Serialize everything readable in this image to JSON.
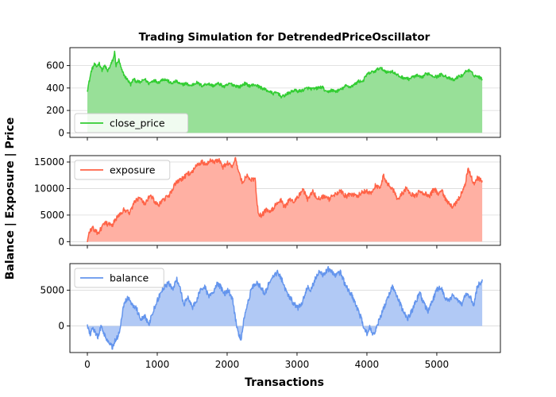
{
  "figure": {
    "title": "Trading Simulation for DetrendedPriceOscillator",
    "xlabel": "Transactions",
    "ylabel": "Balance | Exposure | Price"
  },
  "chart_data": [
    {
      "type": "area",
      "name": "close_price",
      "color": "#32CD32",
      "fill": "#98E098",
      "xlim": [
        -250,
        5910
      ],
      "ylim": [
        -40,
        760
      ],
      "x_ticks": [
        0,
        1000,
        2000,
        3000,
        4000,
        5000
      ],
      "y_ticks": [
        0,
        200,
        400,
        600
      ],
      "grid": true,
      "legend": "lower-left",
      "legend_label": "close_price",
      "anchors": [
        [
          0,
          380
        ],
        [
          30,
          470
        ],
        [
          60,
          560
        ],
        [
          100,
          610
        ],
        [
          130,
          590
        ],
        [
          170,
          620
        ],
        [
          210,
          560
        ],
        [
          250,
          600
        ],
        [
          290,
          550
        ],
        [
          330,
          600
        ],
        [
          370,
          660
        ],
        [
          390,
          720
        ],
        [
          410,
          600
        ],
        [
          450,
          650
        ],
        [
          490,
          560
        ],
        [
          540,
          500
        ],
        [
          580,
          470
        ],
        [
          620,
          430
        ],
        [
          660,
          480
        ],
        [
          700,
          460
        ],
        [
          760,
          450
        ],
        [
          820,
          480
        ],
        [
          880,
          440
        ],
        [
          950,
          470
        ],
        [
          1020,
          450
        ],
        [
          1080,
          480
        ],
        [
          1140,
          470
        ],
        [
          1200,
          440
        ],
        [
          1270,
          460
        ],
        [
          1340,
          430
        ],
        [
          1410,
          440
        ],
        [
          1480,
          420
        ],
        [
          1560,
          450
        ],
        [
          1640,
          420
        ],
        [
          1720,
          440
        ],
        [
          1800,
          420
        ],
        [
          1880,
          440
        ],
        [
          1960,
          410
        ],
        [
          2040,
          440
        ],
        [
          2120,
          420
        ],
        [
          2180,
          410
        ],
        [
          2250,
          440
        ],
        [
          2320,
          420
        ],
        [
          2400,
          430
        ],
        [
          2460,
          410
        ],
        [
          2530,
          390
        ],
        [
          2600,
          370
        ],
        [
          2660,
          350
        ],
        [
          2720,
          360
        ],
        [
          2780,
          320
        ],
        [
          2840,
          340
        ],
        [
          2900,
          360
        ],
        [
          2960,
          380
        ],
        [
          3020,
          370
        ],
        [
          3080,
          380
        ],
        [
          3150,
          400
        ],
        [
          3220,
          390
        ],
        [
          3300,
          400
        ],
        [
          3360,
          410
        ],
        [
          3420,
          360
        ],
        [
          3490,
          380
        ],
        [
          3560,
          370
        ],
        [
          3640,
          390
        ],
        [
          3700,
          420
        ],
        [
          3760,
          410
        ],
        [
          3820,
          430
        ],
        [
          3880,
          460
        ],
        [
          3940,
          460
        ],
        [
          4000,
          520
        ],
        [
          4060,
          540
        ],
        [
          4120,
          550
        ],
        [
          4180,
          580
        ],
        [
          4240,
          560
        ],
        [
          4300,
          540
        ],
        [
          4360,
          550
        ],
        [
          4420,
          520
        ],
        [
          4480,
          500
        ],
        [
          4540,
          490
        ],
        [
          4600,
          480
        ],
        [
          4660,
          500
        ],
        [
          4720,
          510
        ],
        [
          4780,
          490
        ],
        [
          4830,
          520
        ],
        [
          4880,
          530
        ],
        [
          4940,
          510
        ],
        [
          5000,
          500
        ],
        [
          5060,
          520
        ],
        [
          5120,
          510
        ],
        [
          5160,
          490
        ],
        [
          5200,
          480
        ],
        [
          5250,
          470
        ],
        [
          5300,
          500
        ],
        [
          5360,
          510
        ],
        [
          5420,
          550
        ],
        [
          5450,
          560
        ],
        [
          5490,
          540
        ],
        [
          5540,
          510
        ],
        [
          5600,
          500
        ],
        [
          5650,
          480
        ]
      ],
      "noise": 14
    },
    {
      "type": "area",
      "name": "exposure",
      "color": "#FF6347",
      "fill": "#FFB0A3",
      "xlim": [
        -250,
        5910
      ],
      "ylim": [
        -700,
        16200
      ],
      "x_ticks": [
        0,
        1000,
        2000,
        3000,
        4000,
        5000
      ],
      "y_ticks": [
        0,
        5000,
        10000,
        15000
      ],
      "grid": true,
      "legend": "upper-left",
      "legend_label": "exposure",
      "anchors": [
        [
          0,
          0
        ],
        [
          30,
          2000
        ],
        [
          80,
          2500
        ],
        [
          150,
          1500
        ],
        [
          250,
          3500
        ],
        [
          350,
          3000
        ],
        [
          450,
          5000
        ],
        [
          520,
          6000
        ],
        [
          600,
          5500
        ],
        [
          680,
          7500
        ],
        [
          760,
          8500
        ],
        [
          820,
          7000
        ],
        [
          900,
          9000
        ],
        [
          960,
          7500
        ],
        [
          1030,
          7000
        ],
        [
          1100,
          8000
        ],
        [
          1160,
          8500
        ],
        [
          1220,
          10000
        ],
        [
          1270,
          11000
        ],
        [
          1320,
          11500
        ],
        [
          1370,
          12000
        ],
        [
          1420,
          12500
        ],
        [
          1470,
          13000
        ],
        [
          1520,
          13500
        ],
        [
          1580,
          14500
        ],
        [
          1640,
          15000
        ],
        [
          1700,
          14500
        ],
        [
          1760,
          15500
        ],
        [
          1820,
          15000
        ],
        [
          1880,
          15500
        ],
        [
          1940,
          14000
        ],
        [
          2000,
          15000
        ],
        [
          2060,
          14000
        ],
        [
          2120,
          15500
        ],
        [
          2170,
          13000
        ],
        [
          2220,
          11000
        ],
        [
          2280,
          12500
        ],
        [
          2340,
          11500
        ],
        [
          2400,
          12000
        ],
        [
          2430,
          7000
        ],
        [
          2450,
          5000
        ],
        [
          2500,
          5000
        ],
        [
          2560,
          6000
        ],
        [
          2620,
          5500
        ],
        [
          2700,
          7000
        ],
        [
          2760,
          8000
        ],
        [
          2820,
          6500
        ],
        [
          2900,
          8000
        ],
        [
          2960,
          7500
        ],
        [
          3020,
          8500
        ],
        [
          3080,
          10000
        ],
        [
          3150,
          8000
        ],
        [
          3220,
          9500
        ],
        [
          3300,
          8000
        ],
        [
          3380,
          8500
        ],
        [
          3460,
          8000
        ],
        [
          3540,
          9000
        ],
        [
          3620,
          9500
        ],
        [
          3700,
          8500
        ],
        [
          3780,
          9000
        ],
        [
          3860,
          8500
        ],
        [
          3940,
          9500
        ],
        [
          4000,
          9500
        ],
        [
          4060,
          9000
        ],
        [
          4120,
          10500
        ],
        [
          4180,
          10000
        ],
        [
          4240,
          12500
        ],
        [
          4290,
          11000
        ],
        [
          4330,
          10500
        ],
        [
          4390,
          9500
        ],
        [
          4440,
          8000
        ],
        [
          4500,
          9000
        ],
        [
          4560,
          10000
        ],
        [
          4620,
          9000
        ],
        [
          4690,
          8500
        ],
        [
          4760,
          9500
        ],
        [
          4830,
          9000
        ],
        [
          4900,
          8500
        ],
        [
          4960,
          10000
        ],
        [
          5020,
          9000
        ],
        [
          5080,
          9500
        ],
        [
          5120,
          8000
        ],
        [
          5180,
          7000
        ],
        [
          5230,
          6500
        ],
        [
          5290,
          7500
        ],
        [
          5350,
          9000
        ],
        [
          5400,
          10500
        ],
        [
          5450,
          14000
        ],
        [
          5480,
          12500
        ],
        [
          5530,
          11000
        ],
        [
          5580,
          12000
        ],
        [
          5650,
          11500
        ]
      ],
      "noise": 450
    },
    {
      "type": "area",
      "name": "balance",
      "color": "#6495ED",
      "fill": "#B1C9F5",
      "xlim": [
        -250,
        5910
      ],
      "ylim": [
        -3700,
        8700
      ],
      "x_ticks": [
        0,
        1000,
        2000,
        3000,
        4000,
        5000
      ],
      "x_tick_labels": [
        "0",
        "1000",
        "2000",
        "3000",
        "4000",
        "5000"
      ],
      "y_ticks": [
        0,
        5000
      ],
      "grid": true,
      "legend": "upper-left",
      "legend_label": "balance",
      "anchors": [
        [
          0,
          0
        ],
        [
          40,
          -1000
        ],
        [
          80,
          -500
        ],
        [
          150,
          -1500
        ],
        [
          200,
          0
        ],
        [
          260,
          -1500
        ],
        [
          320,
          -2500
        ],
        [
          360,
          -3000
        ],
        [
          400,
          -2000
        ],
        [
          460,
          -1000
        ],
        [
          520,
          3000
        ],
        [
          580,
          4000
        ],
        [
          650,
          3000
        ],
        [
          700,
          2500
        ],
        [
          760,
          1000
        ],
        [
          820,
          1500
        ],
        [
          880,
          0
        ],
        [
          920,
          1500
        ],
        [
          980,
          3000
        ],
        [
          1040,
          4500
        ],
        [
          1100,
          5500
        ],
        [
          1160,
          6000
        ],
        [
          1220,
          5000
        ],
        [
          1280,
          6500
        ],
        [
          1330,
          5000
        ],
        [
          1380,
          3000
        ],
        [
          1440,
          4000
        ],
        [
          1500,
          2500
        ],
        [
          1560,
          3500
        ],
        [
          1620,
          5000
        ],
        [
          1680,
          5500
        ],
        [
          1740,
          4000
        ],
        [
          1800,
          4500
        ],
        [
          1860,
          6000
        ],
        [
          1900,
          5500
        ],
        [
          1960,
          4500
        ],
        [
          2020,
          5000
        ],
        [
          2080,
          3500
        ],
        [
          2120,
          1000
        ],
        [
          2160,
          -1000
        ],
        [
          2200,
          -2000
        ],
        [
          2240,
          1000
        ],
        [
          2300,
          3500
        ],
        [
          2360,
          5500
        ],
        [
          2420,
          6000
        ],
        [
          2480,
          5500
        ],
        [
          2540,
          4500
        ],
        [
          2600,
          6000
        ],
        [
          2660,
          7000
        ],
        [
          2720,
          7500
        ],
        [
          2780,
          6500
        ],
        [
          2840,
          5000
        ],
        [
          2900,
          4000
        ],
        [
          2960,
          3000
        ],
        [
          3020,
          2500
        ],
        [
          3080,
          3500
        ],
        [
          3150,
          5500
        ],
        [
          3200,
          5000
        ],
        [
          3260,
          6500
        ],
        [
          3320,
          7500
        ],
        [
          3380,
          7000
        ],
        [
          3440,
          8000
        ],
        [
          3500,
          7500
        ],
        [
          3560,
          7000
        ],
        [
          3620,
          7500
        ],
        [
          3680,
          6000
        ],
        [
          3740,
          5000
        ],
        [
          3800,
          4000
        ],
        [
          3860,
          2500
        ],
        [
          3920,
          1000
        ],
        [
          3960,
          -500
        ],
        [
          4000,
          -1000
        ],
        [
          4040,
          0
        ],
        [
          4080,
          -1500
        ],
        [
          4130,
          -500
        ],
        [
          4180,
          1000
        ],
        [
          4240,
          2500
        ],
        [
          4300,
          4000
        ],
        [
          4360,
          5500
        ],
        [
          4400,
          5000
        ],
        [
          4460,
          3500
        ],
        [
          4520,
          2000
        ],
        [
          4580,
          1000
        ],
        [
          4640,
          2000
        ],
        [
          4700,
          3500
        ],
        [
          4760,
          4500
        ],
        [
          4820,
          3000
        ],
        [
          4880,
          2000
        ],
        [
          4940,
          3500
        ],
        [
          5000,
          5000
        ],
        [
          5060,
          5500
        ],
        [
          5120,
          4000
        ],
        [
          5180,
          3500
        ],
        [
          5240,
          4500
        ],
        [
          5300,
          3500
        ],
        [
          5360,
          3000
        ],
        [
          5420,
          4500
        ],
        [
          5480,
          4000
        ],
        [
          5530,
          3000
        ],
        [
          5580,
          5500
        ],
        [
          5620,
          6000
        ],
        [
          5650,
          6500
        ]
      ],
      "noise": 380
    }
  ]
}
